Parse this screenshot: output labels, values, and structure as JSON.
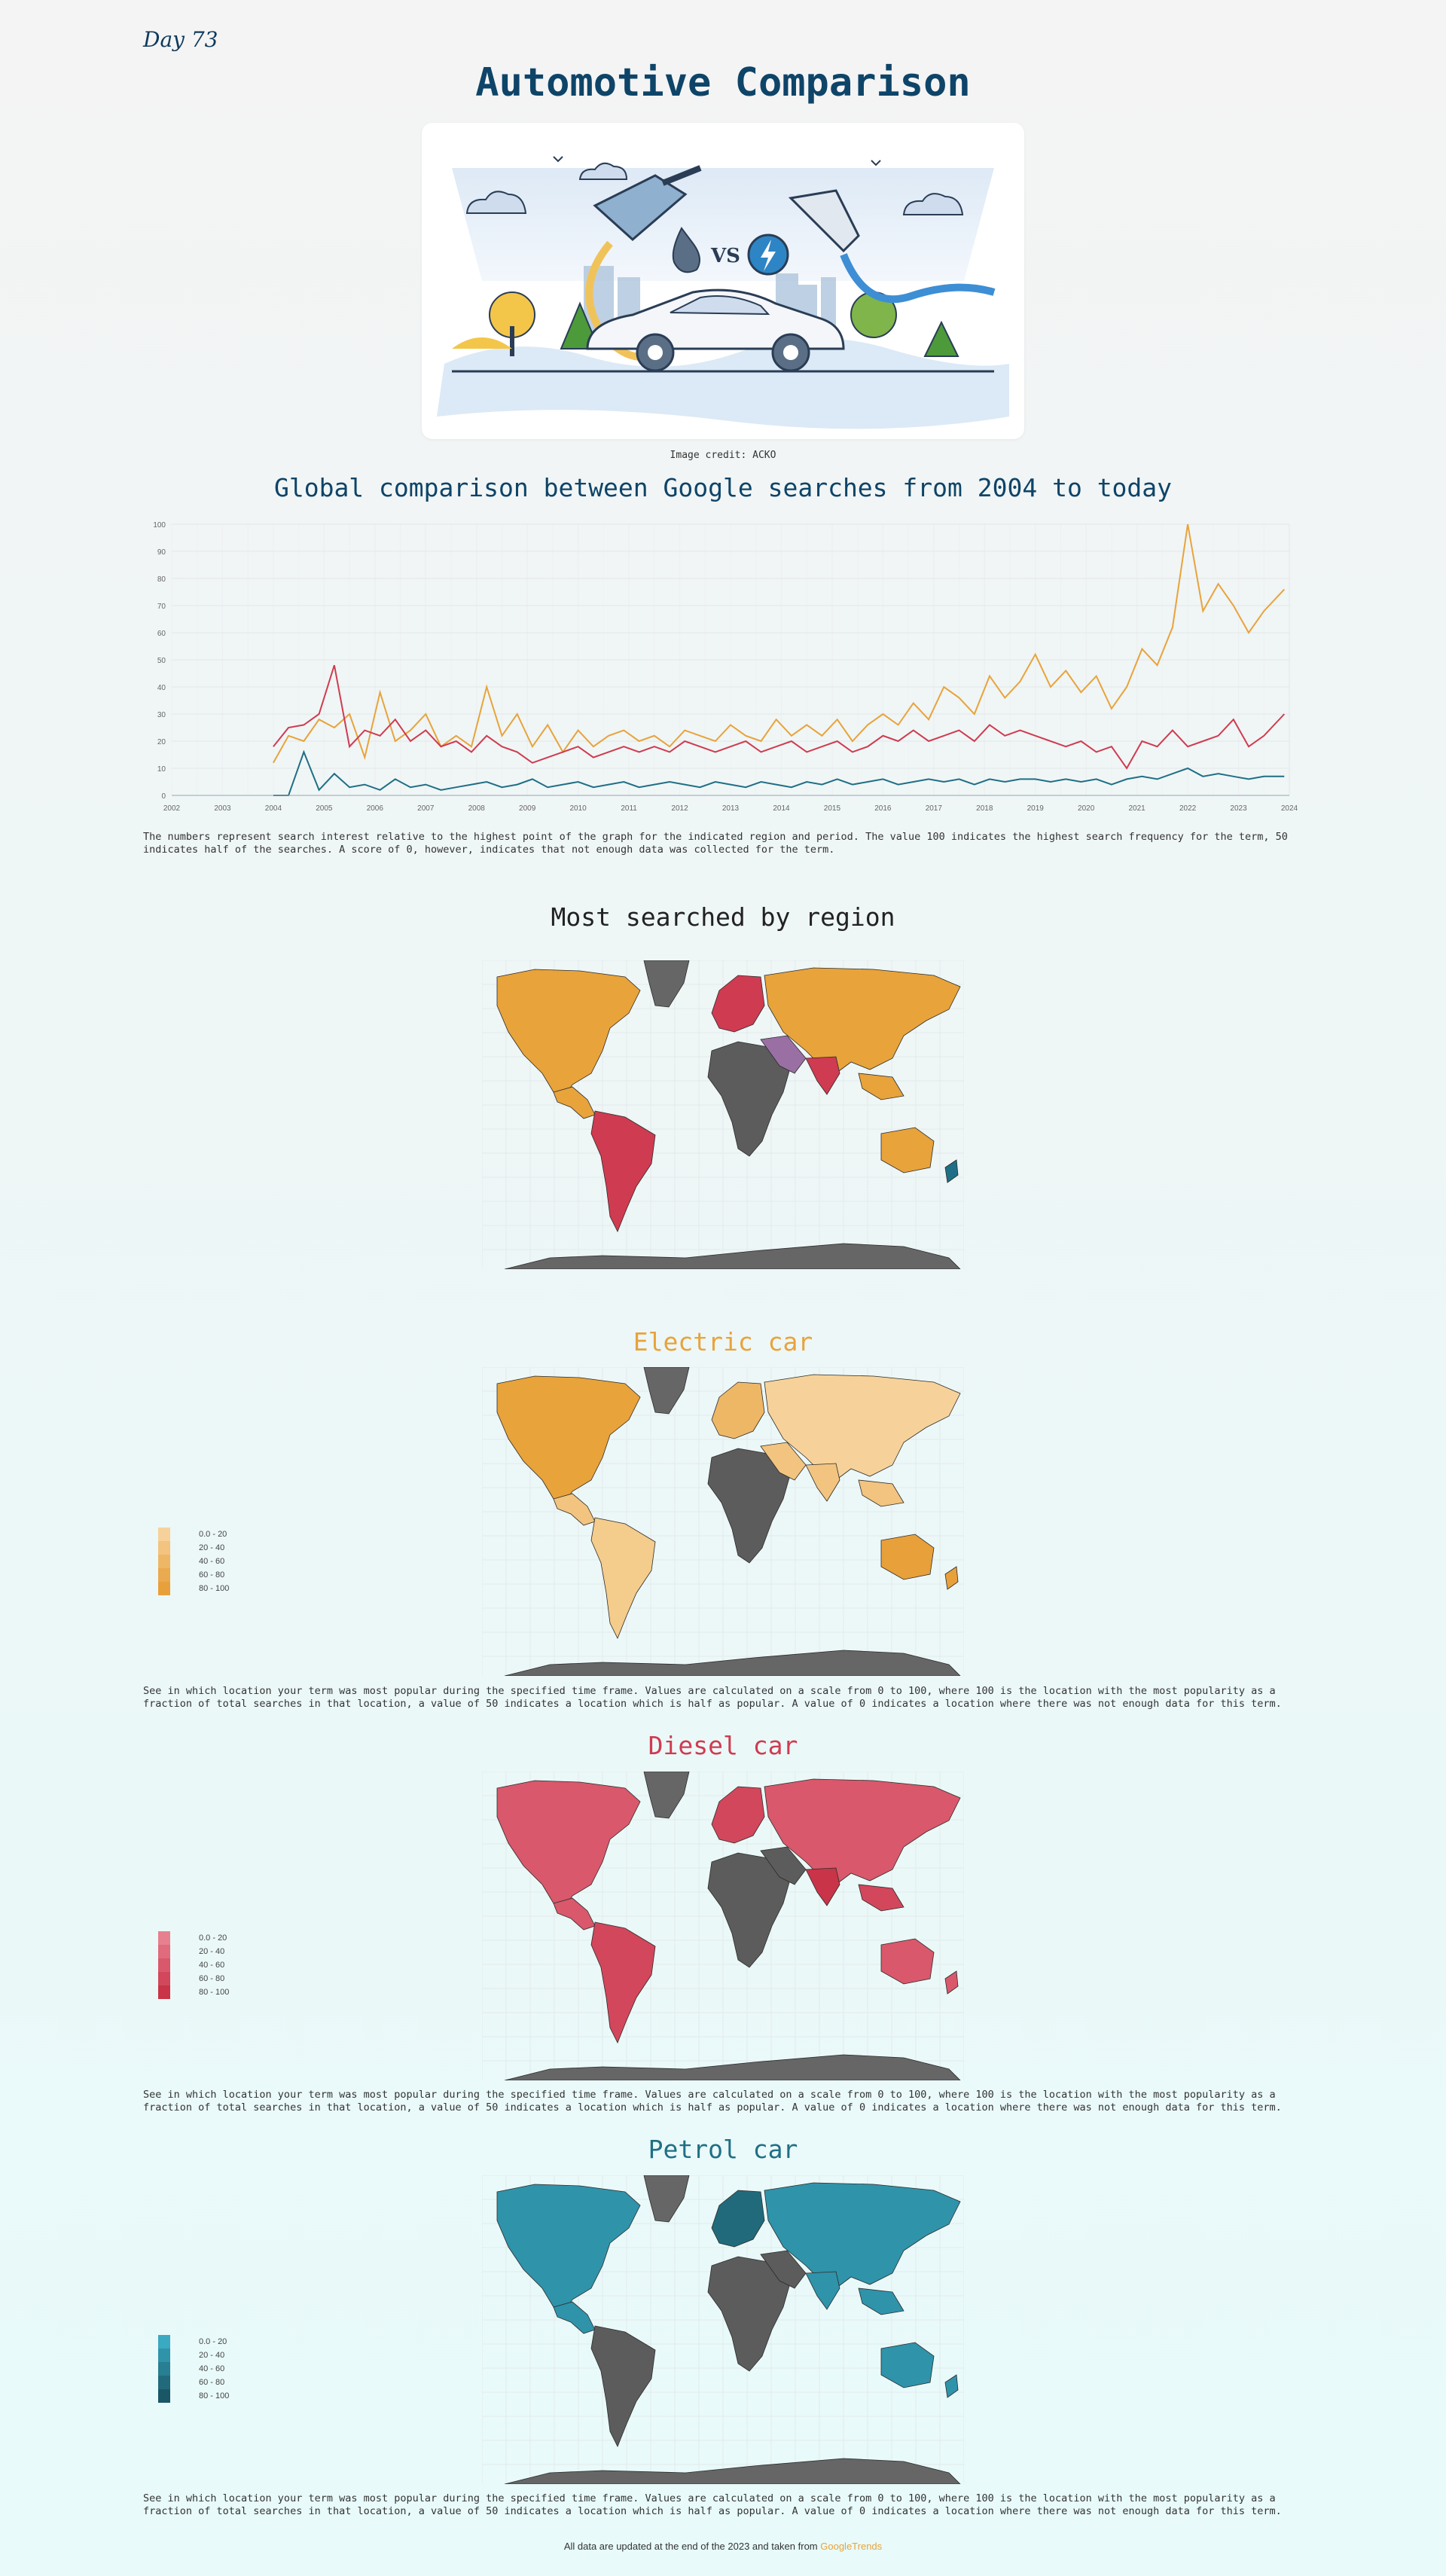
{
  "header": {
    "day": "Day 73",
    "title": "Automotive Comparison"
  },
  "hero": {
    "credit": "Image credit: ACKO",
    "vs": "VS"
  },
  "trend": {
    "title": "Global comparison between Google searches from 2004 to today",
    "note": "The numbers represent search interest relative to the highest point of the graph for the indicated region and period. The value 100 indicates the highest search frequency for the term, 50 indicates half of the searches. A score of 0, however, indicates that not enough data was collected for the term."
  },
  "chart_data": {
    "type": "line",
    "xlim": [
      2002,
      2024
    ],
    "ylim": [
      0,
      100
    ],
    "x_ticks": [
      "2002",
      "2003",
      "2004",
      "2005",
      "2006",
      "2007",
      "2008",
      "2009",
      "2010",
      "2011",
      "2012",
      "2013",
      "2014",
      "2015",
      "2016",
      "2017",
      "2018",
      "2019",
      "2020",
      "2021",
      "2022",
      "2023",
      "2024"
    ],
    "y_ticks": [
      0,
      10,
      20,
      30,
      40,
      50,
      60,
      70,
      80,
      90,
      100
    ],
    "grid": true,
    "x": [
      2004.0,
      2004.3,
      2004.6,
      2004.9,
      2005.2,
      2005.5,
      2005.8,
      2006.1,
      2006.4,
      2006.7,
      2007.0,
      2007.3,
      2007.6,
      2007.9,
      2008.2,
      2008.5,
      2008.8,
      2009.1,
      2009.4,
      2009.7,
      2010.0,
      2010.3,
      2010.6,
      2010.9,
      2011.2,
      2011.5,
      2011.8,
      2012.1,
      2012.4,
      2012.7,
      2013.0,
      2013.3,
      2013.6,
      2013.9,
      2014.2,
      2014.5,
      2014.8,
      2015.1,
      2015.4,
      2015.7,
      2016.0,
      2016.3,
      2016.6,
      2016.9,
      2017.2,
      2017.5,
      2017.8,
      2018.1,
      2018.4,
      2018.7,
      2019.0,
      2019.3,
      2019.6,
      2019.9,
      2020.2,
      2020.5,
      2020.8,
      2021.1,
      2021.4,
      2021.7,
      2022.0,
      2022.3,
      2022.6,
      2022.9,
      2023.2,
      2023.5,
      2023.9
    ],
    "series": [
      {
        "color": "#e8a33b",
        "values": [
          12,
          22,
          20,
          28,
          25,
          30,
          14,
          38,
          20,
          24,
          30,
          18,
          22,
          18,
          40,
          22,
          30,
          18,
          26,
          16,
          24,
          18,
          22,
          24,
          20,
          22,
          18,
          24,
          22,
          20,
          26,
          22,
          20,
          28,
          22,
          26,
          22,
          28,
          20,
          26,
          30,
          26,
          34,
          28,
          40,
          36,
          30,
          44,
          36,
          42,
          52,
          40,
          46,
          38,
          44,
          32,
          40,
          54,
          48,
          62,
          100,
          68,
          78,
          70,
          60,
          68,
          76
        ]
      },
      {
        "color": "#cf3b50",
        "values": [
          18,
          25,
          26,
          30,
          48,
          18,
          24,
          22,
          28,
          20,
          24,
          18,
          20,
          16,
          22,
          18,
          16,
          12,
          14,
          16,
          18,
          14,
          16,
          18,
          16,
          18,
          16,
          20,
          18,
          16,
          18,
          20,
          16,
          18,
          20,
          16,
          18,
          20,
          16,
          18,
          22,
          20,
          24,
          20,
          22,
          24,
          20,
          26,
          22,
          24,
          22,
          20,
          18,
          20,
          16,
          18,
          10,
          20,
          18,
          24,
          18,
          20,
          22,
          28,
          18,
          22,
          30
        ]
      },
      {
        "color": "#1f6f86",
        "values": [
          0,
          0,
          16,
          2,
          8,
          3,
          4,
          2,
          6,
          3,
          4,
          2,
          3,
          4,
          5,
          3,
          4,
          6,
          3,
          4,
          5,
          3,
          4,
          5,
          3,
          4,
          5,
          4,
          3,
          5,
          4,
          3,
          5,
          4,
          3,
          5,
          4,
          6,
          4,
          5,
          6,
          4,
          5,
          6,
          5,
          6,
          4,
          6,
          5,
          6,
          6,
          5,
          6,
          5,
          6,
          4,
          6,
          7,
          6,
          8,
          10,
          7,
          8,
          7,
          6,
          7,
          7
        ]
      }
    ]
  },
  "region": {
    "title": "Most searched by region"
  },
  "maps": [
    {
      "id": "electric",
      "title": "Electric car",
      "color": "#e8a33b",
      "legend": [
        "0.0 - 20",
        "20 - 40",
        "40 - 60",
        "60 - 80",
        "80 - 100"
      ],
      "legend_colors": [
        "#f6d29a",
        "#f2c47f",
        "#eeb766",
        "#eaaa4f",
        "#e8a03b"
      ]
    },
    {
      "id": "diesel",
      "title": "Diesel car",
      "color": "#cf3b50",
      "legend": [
        "0.0 - 20",
        "20 - 40",
        "40 - 60",
        "60 - 80",
        "80 - 100"
      ],
      "legend_colors": [
        "#e7808e",
        "#e06b7c",
        "#d9586b",
        "#d2475b",
        "#c93448"
      ]
    },
    {
      "id": "petrol",
      "title": "Petrol car",
      "color": "#1f6f86",
      "legend": [
        "0.0 - 20",
        "20 - 40",
        "40 - 60",
        "60 - 80",
        "80 - 100"
      ],
      "legend_colors": [
        "#3aa9c2",
        "#2f93aa",
        "#287e92",
        "#216a7b",
        "#1a5766"
      ]
    }
  ],
  "map_note": "See in which location your term was most popular during the specified time frame. Values are calculated on a scale from 0 to 100, where 100 is the location with the most popularity as a fraction of total searches in that location, a value of 50 indicates a location which is half as popular. A value of 0 indicates a location where there was not enough data for this term.",
  "footer": {
    "text": "All data are updated at the end of the 2023 and taken from ",
    "source": "GoogleTrends"
  }
}
